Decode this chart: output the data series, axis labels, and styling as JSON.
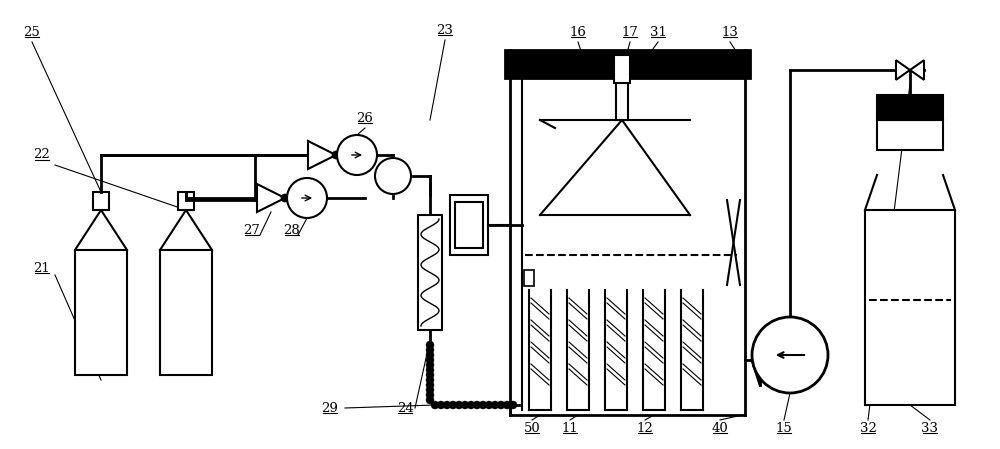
{
  "bg": "#ffffff",
  "lc": "#000000",
  "fig_w": 10.0,
  "fig_h": 4.49,
  "dpi": 100
}
